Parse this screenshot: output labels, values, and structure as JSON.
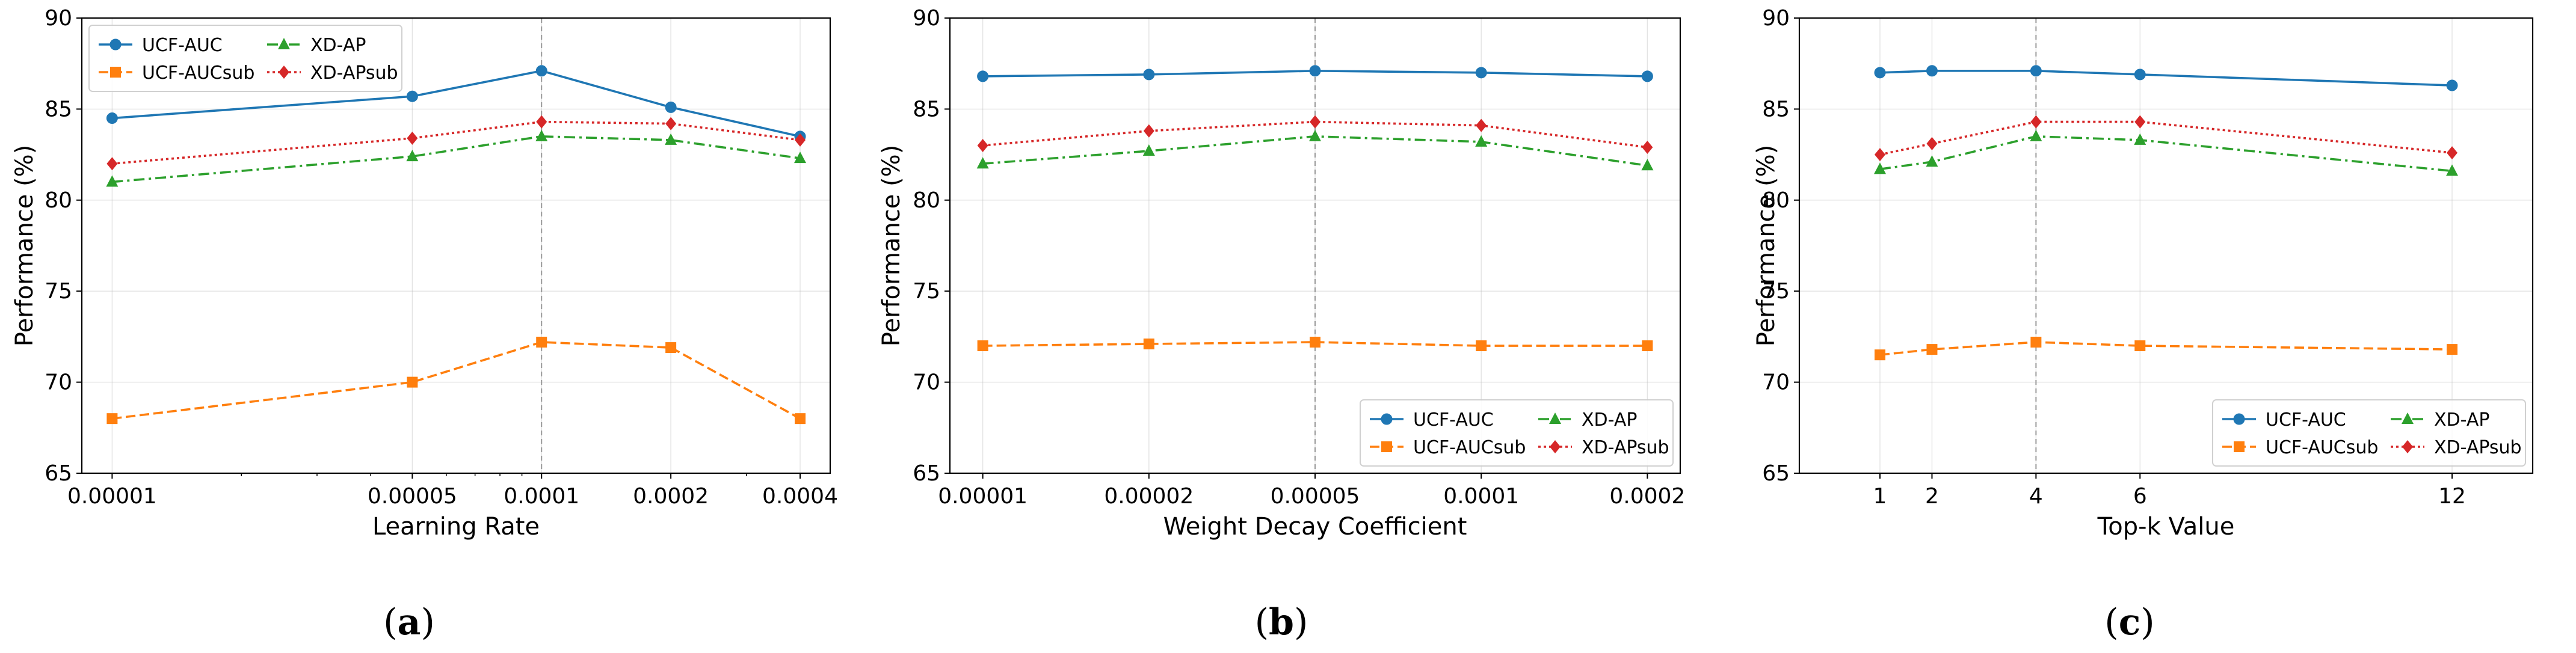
{
  "chart_data": [
    {
      "type": "line",
      "panel_label": "a",
      "xlabel": "Learning Rate",
      "ylabel": "Performance (%)",
      "x_scale": "log",
      "xlim": [
        8.5e-06,
        0.00047
      ],
      "ylim": [
        65,
        90
      ],
      "y_ticks": [
        65,
        70,
        75,
        80,
        85,
        90
      ],
      "categories": [
        "0.00001",
        "0.00005",
        "0.0001",
        "0.0002",
        "0.0004"
      ],
      "x": [
        1e-05,
        5e-05,
        0.0001,
        0.0002,
        0.0004
      ],
      "reference_x": 0.0001,
      "grid": true,
      "legend_position": "top-left",
      "series": [
        {
          "name": "UCF-AUC",
          "color": "#1f77b4",
          "marker": "circle",
          "linestyle": "solid",
          "values": [
            84.5,
            85.7,
            87.1,
            85.1,
            83.5
          ]
        },
        {
          "name": "UCF-AUCsub",
          "color": "#ff7f0e",
          "marker": "square",
          "linestyle": "dashed",
          "values": [
            68.0,
            70.0,
            72.2,
            71.9,
            68.0
          ]
        },
        {
          "name": "XD-AP",
          "color": "#2ca02c",
          "marker": "triangle",
          "linestyle": "dashdot",
          "values": [
            81.0,
            82.4,
            83.5,
            83.3,
            82.3
          ]
        },
        {
          "name": "XD-APsub",
          "color": "#d62728",
          "marker": "diamond",
          "linestyle": "dotted",
          "values": [
            82.0,
            83.4,
            84.3,
            84.2,
            83.3
          ]
        }
      ]
    },
    {
      "type": "line",
      "panel_label": "b",
      "xlabel": "Weight Decay Coefficient",
      "ylabel": "Performance (%)",
      "x_scale": "categorical",
      "ylim": [
        65,
        90
      ],
      "y_ticks": [
        65,
        70,
        75,
        80,
        85,
        90
      ],
      "categories": [
        "0.00001",
        "0.00002",
        "0.00005",
        "0.0001",
        "0.0002"
      ],
      "reference_category": "0.00005",
      "grid": true,
      "legend_position": "bottom-right",
      "series": [
        {
          "name": "UCF-AUC",
          "color": "#1f77b4",
          "marker": "circle",
          "linestyle": "solid",
          "values": [
            86.8,
            86.9,
            87.1,
            87.0,
            86.8
          ]
        },
        {
          "name": "UCF-AUCsub",
          "color": "#ff7f0e",
          "marker": "square",
          "linestyle": "dashed",
          "values": [
            72.0,
            72.1,
            72.2,
            72.0,
            72.0
          ]
        },
        {
          "name": "XD-AP",
          "color": "#2ca02c",
          "marker": "triangle",
          "linestyle": "dashdot",
          "values": [
            82.0,
            82.7,
            83.5,
            83.2,
            81.9
          ]
        },
        {
          "name": "XD-APsub",
          "color": "#d62728",
          "marker": "diamond",
          "linestyle": "dotted",
          "values": [
            83.0,
            83.8,
            84.3,
            84.1,
            82.9
          ]
        }
      ]
    },
    {
      "type": "line",
      "panel_label": "c",
      "xlabel": "Top-k Value",
      "ylabel": "Performance (%)",
      "x_scale": "linear",
      "xlim": [
        -0.55,
        13.55
      ],
      "ylim": [
        65,
        90
      ],
      "y_ticks": [
        65,
        70,
        75,
        80,
        85,
        90
      ],
      "categories": [
        "1",
        "2",
        "4",
        "6",
        "12"
      ],
      "x": [
        1,
        2,
        4,
        6,
        12
      ],
      "reference_x": 4,
      "grid": true,
      "legend_position": "bottom-right",
      "series": [
        {
          "name": "UCF-AUC",
          "color": "#1f77b4",
          "marker": "circle",
          "linestyle": "solid",
          "values": [
            87.0,
            87.1,
            87.1,
            86.9,
            86.3
          ]
        },
        {
          "name": "UCF-AUCsub",
          "color": "#ff7f0e",
          "marker": "square",
          "linestyle": "dashed",
          "values": [
            71.5,
            71.8,
            72.2,
            72.0,
            71.8
          ]
        },
        {
          "name": "XD-AP",
          "color": "#2ca02c",
          "marker": "triangle",
          "linestyle": "dashdot",
          "values": [
            81.7,
            82.1,
            83.5,
            83.3,
            81.6
          ]
        },
        {
          "name": "XD-APsub",
          "color": "#d62728",
          "marker": "diamond",
          "linestyle": "dotted",
          "values": [
            82.5,
            83.1,
            84.3,
            84.3,
            82.6
          ]
        }
      ]
    }
  ]
}
